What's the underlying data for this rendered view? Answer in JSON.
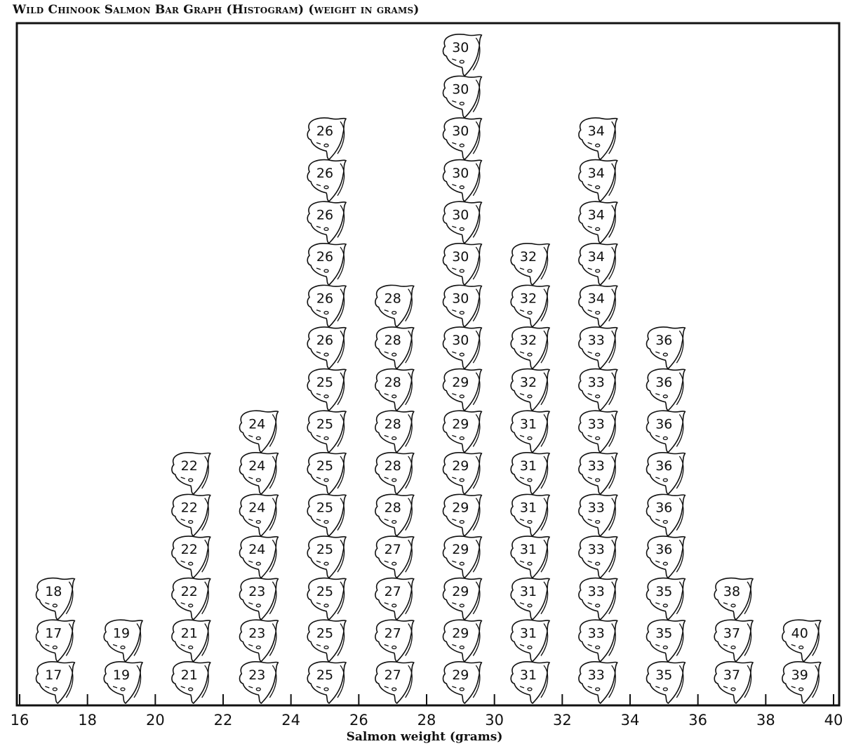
{
  "chart_data": {
    "type": "histogram",
    "title": "Wild Chinook Salmon Bar Graph (Histogram) (weight in grams)",
    "xlabel": "Salmon weight (grams)",
    "ylabel": "",
    "x_ticks": [
      16,
      18,
      20,
      22,
      24,
      26,
      28,
      30,
      32,
      34,
      36,
      38,
      40
    ],
    "xlim": [
      16,
      40
    ],
    "bin_width": 2,
    "bins": [
      {
        "range": [
          16,
          18
        ],
        "count": 3,
        "stack": [
          17,
          17,
          18
        ]
      },
      {
        "range": [
          18,
          20
        ],
        "count": 2,
        "stack": [
          19,
          19
        ]
      },
      {
        "range": [
          20,
          22
        ],
        "count": 6,
        "stack": [
          21,
          21,
          22,
          22,
          22,
          22
        ]
      },
      {
        "range": [
          22,
          24
        ],
        "count": 7,
        "stack": [
          23,
          23,
          23,
          24,
          24,
          24,
          24
        ]
      },
      {
        "range": [
          24,
          26
        ],
        "count": 14,
        "stack": [
          25,
          25,
          25,
          25,
          25,
          25,
          25,
          25,
          26,
          26,
          26,
          26,
          26,
          26
        ]
      },
      {
        "range": [
          26,
          28
        ],
        "count": 10,
        "stack": [
          27,
          27,
          27,
          27,
          28,
          28,
          28,
          28,
          28,
          28
        ]
      },
      {
        "range": [
          28,
          30
        ],
        "count": 16,
        "stack": [
          29,
          29,
          29,
          29,
          29,
          29,
          29,
          29,
          30,
          30,
          30,
          30,
          30,
          30,
          30,
          30
        ]
      },
      {
        "range": [
          30,
          32
        ],
        "count": 11,
        "stack": [
          31,
          31,
          31,
          31,
          31,
          31,
          31,
          32,
          32,
          32,
          32
        ]
      },
      {
        "range": [
          32,
          34
        ],
        "count": 14,
        "stack": [
          33,
          33,
          33,
          33,
          33,
          33,
          33,
          33,
          33,
          34,
          34,
          34,
          34,
          34
        ]
      },
      {
        "range": [
          34,
          36
        ],
        "count": 9,
        "stack": [
          35,
          35,
          35,
          36,
          36,
          36,
          36,
          36,
          36
        ]
      },
      {
        "range": [
          36,
          38
        ],
        "count": 3,
        "stack": [
          37,
          37,
          38
        ]
      },
      {
        "range": [
          38,
          40
        ],
        "count": 2,
        "stack": [
          39,
          40
        ]
      }
    ],
    "grid": false,
    "legend": "none"
  }
}
